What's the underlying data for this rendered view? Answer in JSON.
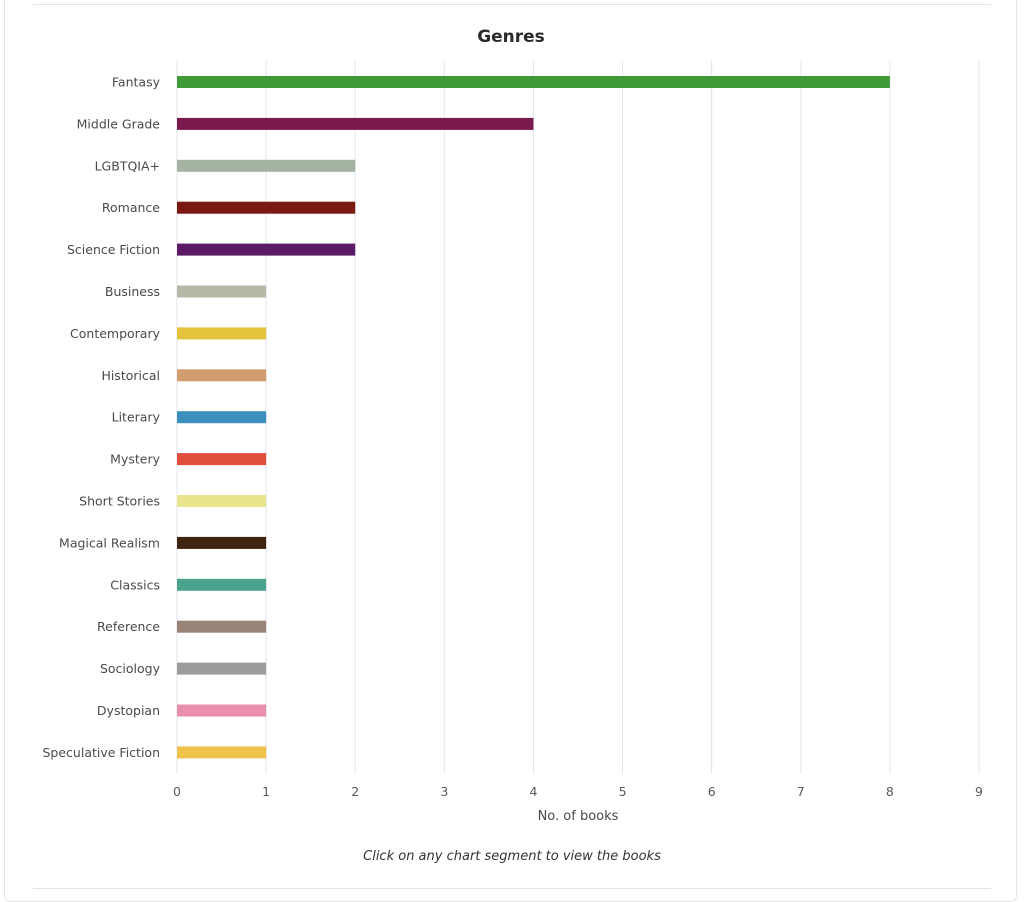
{
  "chart_data": {
    "type": "bar",
    "orientation": "horizontal",
    "title": "Genres",
    "xlabel": "No. of books",
    "ylabel": "",
    "xlim": [
      0,
      9
    ],
    "ticks": [
      "0",
      "1",
      "2",
      "3",
      "4",
      "5",
      "6",
      "7",
      "8",
      "9"
    ],
    "grid": true,
    "categories": [
      "Fantasy",
      "Middle Grade",
      "LGBTQIA+",
      "Romance",
      "Science Fiction",
      "Business",
      "Contemporary",
      "Historical",
      "Literary",
      "Mystery",
      "Short Stories",
      "Magical Realism",
      "Classics",
      "Reference",
      "Sociology",
      "Dystopian",
      "Speculative Fiction"
    ],
    "values": [
      8,
      4,
      2,
      2,
      2,
      1,
      1,
      1,
      1,
      1,
      1,
      1,
      1,
      1,
      1,
      1,
      1
    ],
    "colors": [
      "#3f9a38",
      "#7a1a4f",
      "#a5b4a2",
      "#7a1812",
      "#5a1a66",
      "#b5b9a8",
      "#e3c23c",
      "#d19c6e",
      "#3d8fc0",
      "#e04e3e",
      "#e8e58c",
      "#3f2412",
      "#4ca38d",
      "#9a8478",
      "#9c9c9c",
      "#e88fae",
      "#efc24a"
    ]
  },
  "footer": {
    "hint": "Click on any chart segment to view the books"
  }
}
